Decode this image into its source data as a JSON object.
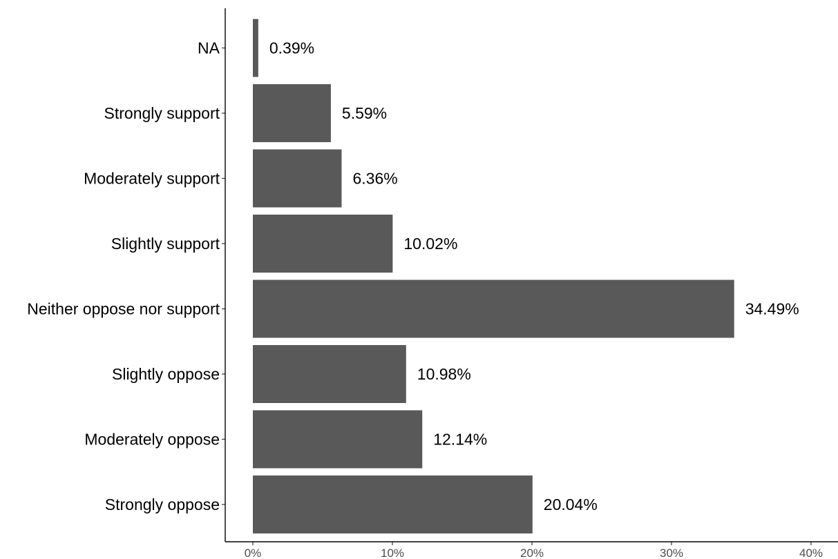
{
  "chart_data": {
    "type": "bar",
    "orientation": "horizontal",
    "categories": [
      "Strongly oppose",
      "Moderately oppose",
      "Slightly oppose",
      "Neither oppose nor support",
      "Slightly support",
      "Moderately support",
      "Strongly support",
      "NA"
    ],
    "values": [
      20.04,
      12.14,
      10.98,
      34.49,
      10.02,
      6.36,
      5.59,
      0.39
    ],
    "value_labels": [
      "20.04%",
      "12.14%",
      "10.98%",
      "34.49%",
      "10.02%",
      "6.36%",
      "5.59%",
      "0.39%"
    ],
    "xlim": [
      0,
      40
    ],
    "x_ticks": [
      0,
      10,
      20,
      30,
      40
    ],
    "x_tick_labels": [
      "0%",
      "10%",
      "20%",
      "30%",
      "40%"
    ],
    "title": "",
    "xlabel": "",
    "ylabel": "",
    "grid": false,
    "legend": "none",
    "bar_color": "#595959"
  }
}
